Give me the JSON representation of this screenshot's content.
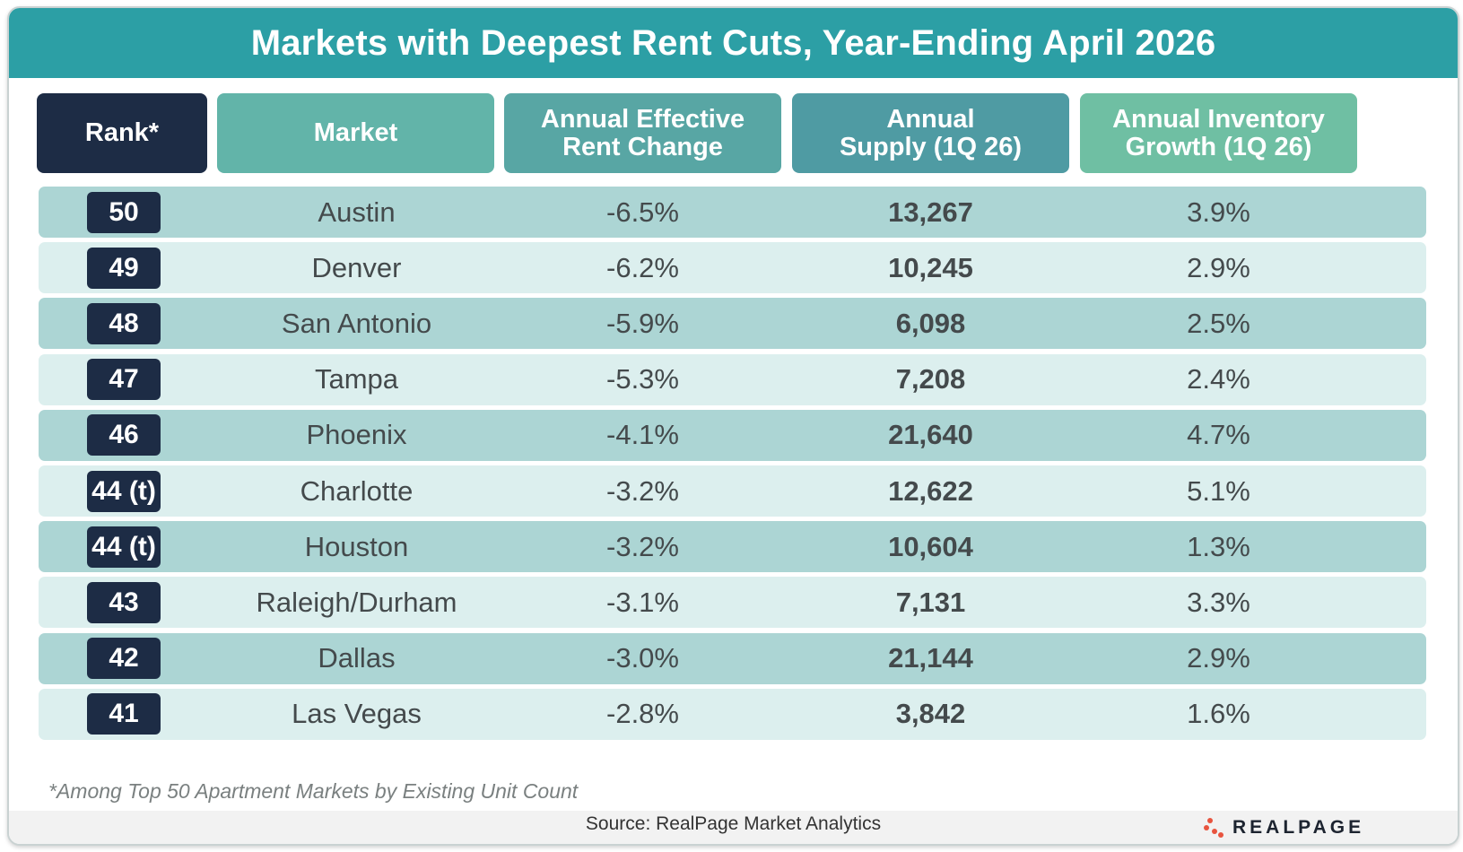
{
  "title": "Markets with Deepest Rent Cuts, Year-Ending April 2026",
  "columns": {
    "rank": "Rank*",
    "market": "Market",
    "rent_change_line1": "Annual Effective",
    "rent_change_line2": "Rent Change",
    "supply_line1": "Annual",
    "supply_line2": "Supply (1Q 26)",
    "inventory_line1": "Annual Inventory",
    "inventory_line2": "Growth (1Q 26)"
  },
  "colors": {
    "title_bar": "#2c9fa5",
    "rank_header": "#1d2c45",
    "market_header": "#62b4a9",
    "rent_header": "#58a6a4",
    "supply_header": "#4f9ba3",
    "inventory_header": "#6fbfa3",
    "row_dark": "#acd5d4",
    "row_light": "#dcefee",
    "logo_dots": "#e8543f"
  },
  "chart_data": {
    "type": "table",
    "headers": [
      "Rank*",
      "Market",
      "Annual Effective Rent Change",
      "Annual Supply (1Q 26)",
      "Annual Inventory Growth (1Q 26)"
    ],
    "rows": [
      {
        "rank": "50",
        "market": "Austin",
        "rent_change": "-6.5%",
        "supply": "13,267",
        "inventory_growth": "3.9%"
      },
      {
        "rank": "49",
        "market": "Denver",
        "rent_change": "-6.2%",
        "supply": "10,245",
        "inventory_growth": "2.9%"
      },
      {
        "rank": "48",
        "market": "San Antonio",
        "rent_change": "-5.9%",
        "supply": "6,098",
        "inventory_growth": "2.5%"
      },
      {
        "rank": "47",
        "market": "Tampa",
        "rent_change": "-5.3%",
        "supply": "7,208",
        "inventory_growth": "2.4%"
      },
      {
        "rank": "46",
        "market": "Phoenix",
        "rent_change": "-4.1%",
        "supply": "21,640",
        "inventory_growth": "4.7%"
      },
      {
        "rank": "44 (t)",
        "market": "Charlotte",
        "rent_change": "-3.2%",
        "supply": "12,622",
        "inventory_growth": "5.1%"
      },
      {
        "rank": "44 (t)",
        "market": "Houston",
        "rent_change": "-3.2%",
        "supply": "10,604",
        "inventory_growth": "1.3%"
      },
      {
        "rank": "43",
        "market": "Raleigh/Durham",
        "rent_change": "-3.1%",
        "supply": "7,131",
        "inventory_growth": "3.3%"
      },
      {
        "rank": "42",
        "market": "Dallas",
        "rent_change": "-3.0%",
        "supply": "21,144",
        "inventory_growth": "2.9%"
      },
      {
        "rank": "41",
        "market": "Las Vegas",
        "rent_change": "-2.8%",
        "supply": "3,842",
        "inventory_growth": "1.6%"
      }
    ]
  },
  "footnote": "*Among Top 50 Apartment Markets by Existing Unit Count",
  "source": "Source: RealPage Market Analytics",
  "logo": {
    "text": "REALPAGE",
    "icon": "realpage-dots-icon"
  }
}
